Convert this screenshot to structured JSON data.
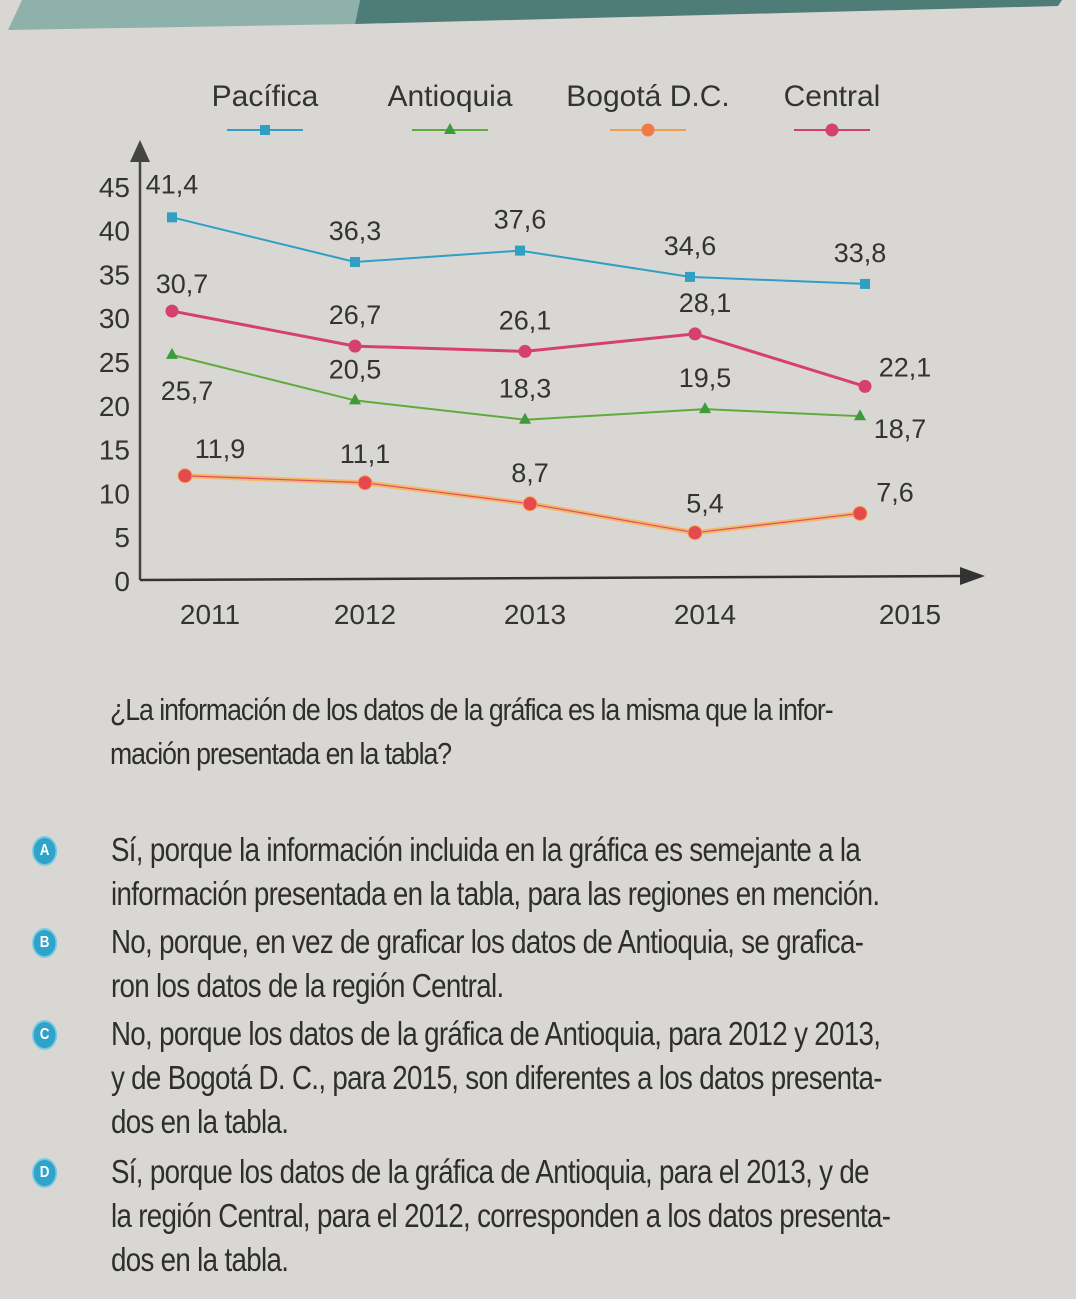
{
  "header_band": {
    "colors": [
      "#8fb1ab",
      "#4e7c77"
    ]
  },
  "chart_data": {
    "type": "line",
    "title": "",
    "xlabel": "",
    "ylabel": "",
    "x": [
      "2011",
      "2012",
      "2013",
      "2014",
      "2015"
    ],
    "yticks": [
      0,
      5,
      10,
      15,
      20,
      25,
      30,
      35,
      40,
      45
    ],
    "ylim": [
      0,
      45
    ],
    "grid": false,
    "legend_position": "top",
    "series": [
      {
        "name": "Pacífica",
        "color": "#2f9fc4",
        "marker": "square",
        "values": [
          41.4,
          36.3,
          37.6,
          34.6,
          33.8
        ],
        "labels": [
          "41,4",
          "36,3",
          "37,6",
          "34,6",
          "33,8"
        ]
      },
      {
        "name": "Antioquia",
        "color": "#5faa3a",
        "marker": "triangle",
        "values": [
          25.7,
          20.5,
          18.3,
          19.5,
          18.7
        ],
        "labels": [
          "25,7",
          "20,5",
          "18,3",
          "19,5",
          "18,7"
        ]
      },
      {
        "name": "Bogotá D.C.",
        "color": "#f0a050",
        "marker": "circle",
        "values": [
          11.9,
          11.1,
          8.7,
          5.4,
          7.6
        ],
        "labels": [
          "11,9",
          "11,1",
          "8,7",
          "5,4",
          "7,6"
        ]
      },
      {
        "name": "Central",
        "color": "#d63f72",
        "marker": "circle",
        "values": [
          30.7,
          26.7,
          26.1,
          28.1,
          22.1
        ],
        "labels": [
          "30,7",
          "26,7",
          "26,1",
          "28,1",
          "22,1"
        ]
      }
    ]
  },
  "question": "¿La información de los datos de la gráfica es la misma que la infor­mación presentada en la tabla?",
  "question_lines": [
    "¿La información de los datos de la gráfica es la misma que la infor-",
    "mación presentada en la tabla?"
  ],
  "options": [
    {
      "letter": "A",
      "lines": [
        "Sí, porque la información incluida en la gráfica es semejante a la",
        "información presentada en la tabla, para las regiones en mención."
      ]
    },
    {
      "letter": "B",
      "lines": [
        "No, porque, en vez de graficar los datos de Antioquia, se grafica-",
        "ron los datos de la región Central."
      ]
    },
    {
      "letter": "C",
      "lines": [
        "No, porque los datos de la gráfica de Antioquia, para 2012 y 2013,",
        "y de Bogotá D. C., para 2015, son diferentes a los datos presenta-",
        "dos en la tabla."
      ]
    },
    {
      "letter": "D",
      "lines": [
        "Sí, porque los datos de la gráfica de Antioquia, para el 2013, y de",
        "la región Central, para el 2012, corresponden a los datos presenta-",
        "dos en la tabla."
      ]
    }
  ]
}
